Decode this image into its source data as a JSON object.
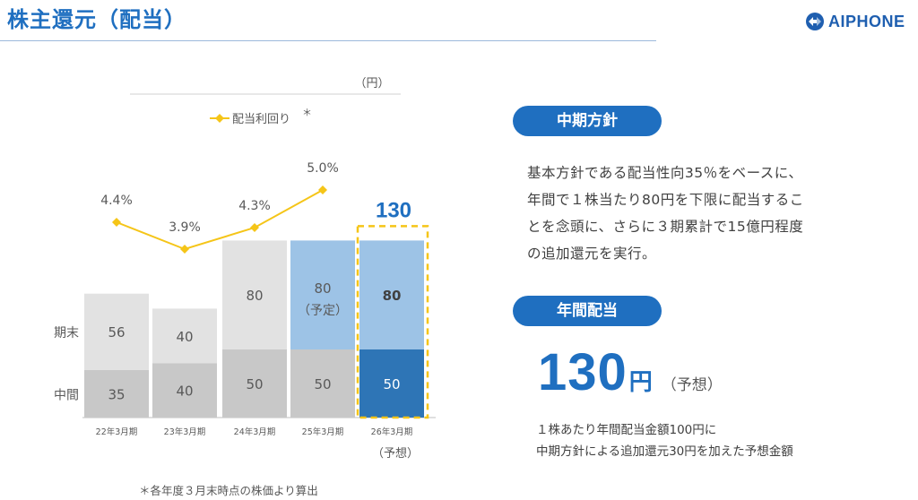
{
  "header": {
    "title": "株主還元（配当）",
    "logo_text": "AIPHONE"
  },
  "chart_data": {
    "type": "bar",
    "stacked": true,
    "unit_label": "（円）",
    "categories": [
      "22年3月期",
      "23年3月期",
      "24年3月期",
      "25年3月期",
      "26年3月期"
    ],
    "category_sublabels": [
      "",
      "",
      "",
      "",
      "（予想）"
    ],
    "series": [
      {
        "name": "中間",
        "values": [
          35,
          40,
          50,
          50,
          50
        ],
        "colors": [
          "#c8c8c8",
          "#c8c8c8",
          "#c8c8c8",
          "#c8c8c8",
          "#2e75b6"
        ]
      },
      {
        "name": "期末",
        "values": [
          56,
          40,
          80,
          80,
          80
        ],
        "colors": [
          "#e2e2e2",
          "#e2e2e2",
          "#e2e2e2",
          "#9dc3e6",
          "#9dc3e6"
        ]
      }
    ],
    "data_labels": [
      {
        "bottom": "35",
        "top": "56"
      },
      {
        "bottom": "40",
        "top": "40"
      },
      {
        "bottom": "50",
        "top": "80"
      },
      {
        "bottom": "50",
        "top": "80",
        "top_note": "（予定）"
      },
      {
        "bottom": "50",
        "top": "80"
      }
    ],
    "highlight": {
      "index": 4,
      "total_label": "130",
      "color": "#f5c518"
    },
    "line_series": {
      "name": "配当利回り",
      "legend_label": "配当利回り",
      "legend_mark": "＊",
      "color": "#f5c518",
      "points": [
        {
          "index": 0,
          "value": 4.4,
          "label": "4.4%"
        },
        {
          "index": 1,
          "value": 3.9,
          "label": "3.9%"
        },
        {
          "index": 2,
          "value": 4.3,
          "label": "4.3%"
        },
        {
          "index": 3,
          "value": 5.0,
          "label": "5.0%"
        }
      ]
    },
    "stack_labels": {
      "top": "期末",
      "bottom": "中間"
    },
    "footnote": "＊各年度３月末時点の株価より算出"
  },
  "policy": {
    "heading": "中期方針",
    "lines": [
      "基本方針である配当性向35％をベースに、",
      "年間で１株当たり80円を下限に配当するこ",
      "とを念頭に、さらに３期累計で15億円程度",
      "の追加還元を実行。"
    ]
  },
  "annual": {
    "heading": "年間配当",
    "amount": "130",
    "unit": "円",
    "note": "（予想）",
    "desc_lines": [
      "１株あたり年間配当金額100円に",
      "中期方針による追加還元30円を加えた予想金額"
    ]
  }
}
